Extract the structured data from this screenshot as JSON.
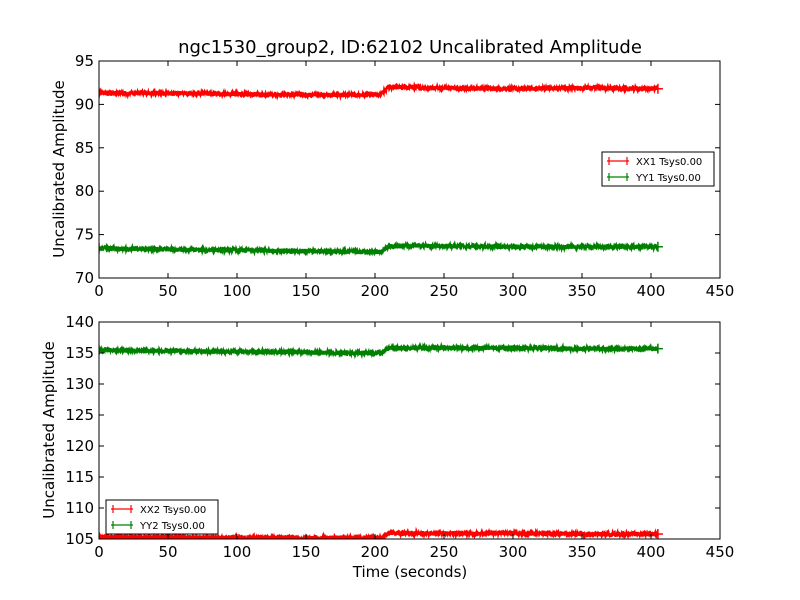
{
  "chart_data": [
    {
      "type": "line",
      "title": "ngc1530_group2, ID:62102 Uncalibrated Amplitude",
      "xlabel": "",
      "ylabel": "Uncalibrated Amplitude",
      "xlim": [
        0,
        450
      ],
      "ylim": [
        70,
        95
      ],
      "xticks": [
        "0",
        "50",
        "100",
        "150",
        "200",
        "250",
        "300",
        "350",
        "400",
        "450"
      ],
      "yticks": [
        "70",
        "75",
        "80",
        "85",
        "90",
        "95"
      ],
      "legend_position": "center-right",
      "series": [
        {
          "name": "XX1 Tsys0.00",
          "color": "#ff0000",
          "x": [
            0,
            50,
            100,
            150,
            200,
            204,
            210,
            250,
            300,
            350,
            405
          ],
          "y": [
            91.3,
            91.3,
            91.2,
            91.1,
            91.1,
            91.1,
            92.0,
            91.9,
            91.8,
            91.9,
            91.8
          ]
        },
        {
          "name": "YY1 Tsys0.00",
          "color": "#008000",
          "x": [
            0,
            50,
            100,
            150,
            200,
            204,
            210,
            250,
            300,
            350,
            405
          ],
          "y": [
            73.4,
            73.3,
            73.2,
            73.1,
            73.0,
            73.0,
            73.7,
            73.7,
            73.6,
            73.6,
            73.6
          ]
        }
      ]
    },
    {
      "type": "line",
      "title": "",
      "xlabel": "Time (seconds)",
      "ylabel": "Uncalibrated Amplitude",
      "xlim": [
        0,
        450
      ],
      "ylim": [
        105,
        140
      ],
      "xticks": [
        "0",
        "50",
        "100",
        "150",
        "200",
        "250",
        "300",
        "350",
        "400",
        "450"
      ],
      "yticks": [
        "105",
        "110",
        "115",
        "120",
        "125",
        "130",
        "135",
        "140"
      ],
      "legend_position": "lower-left",
      "series": [
        {
          "name": "XX2 Tsys0.00",
          "color": "#ff0000",
          "x": [
            0,
            50,
            100,
            150,
            200,
            204,
            210,
            250,
            300,
            350,
            405
          ],
          "y": [
            105.3,
            105.3,
            105.2,
            105.2,
            105.2,
            105.2,
            106.0,
            105.9,
            105.9,
            105.8,
            105.8
          ]
        },
        {
          "name": "YY2 Tsys0.00",
          "color": "#008000",
          "x": [
            0,
            50,
            100,
            150,
            200,
            204,
            210,
            250,
            300,
            350,
            405
          ],
          "y": [
            135.5,
            135.3,
            135.2,
            135.1,
            135.0,
            135.0,
            135.8,
            135.8,
            135.8,
            135.7,
            135.7
          ]
        }
      ]
    }
  ]
}
